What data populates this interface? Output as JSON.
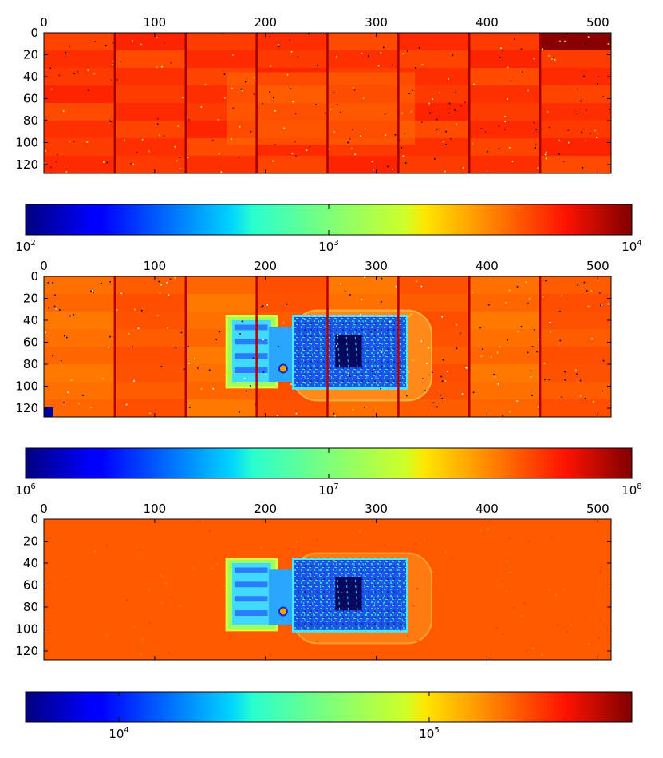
{
  "chart_data": [
    {
      "type": "heatmap",
      "colormap": "jet",
      "colorscale": "log",
      "x_ticks": [
        0,
        100,
        200,
        300,
        400,
        500
      ],
      "y_ticks": [
        0,
        20,
        40,
        60,
        80,
        100,
        120
      ],
      "xlim": [
        0,
        512
      ],
      "ylim": [
        128,
        0
      ],
      "x_axis_position": "top",
      "colorbar": {
        "orientation": "horizontal",
        "range": [
          100,
          10000
        ],
        "tick_labels": [
          {
            "base": "10",
            "exp": "2"
          },
          {
            "base": "10",
            "exp": "3"
          },
          {
            "base": "10",
            "exp": "4"
          }
        ]
      },
      "image": "flat-field: uniform high background (red/orange) with tile seams; top-right tile dark red"
    },
    {
      "type": "heatmap",
      "colormap": "jet",
      "colorscale": "log",
      "x_ticks": [
        0,
        100,
        200,
        300,
        400,
        500
      ],
      "y_ticks": [
        0,
        20,
        40,
        60,
        80,
        100,
        120
      ],
      "xlim": [
        0,
        512
      ],
      "ylim": [
        128,
        0
      ],
      "x_axis_position": "top",
      "colorbar": {
        "orientation": "horizontal",
        "range": [
          1000000,
          100000000
        ],
        "tick_labels": [
          {
            "base": "10",
            "exp": "6"
          },
          {
            "base": "10",
            "exp": "7"
          },
          {
            "base": "10",
            "exp": "8"
          }
        ]
      },
      "image": "raw X-ray of USB stick over tiled orange background; stick shown in blue/cyan"
    },
    {
      "type": "heatmap",
      "colormap": "jet",
      "colorscale": "log",
      "x_ticks": [
        0,
        100,
        200,
        300,
        400,
        500
      ],
      "y_ticks": [
        0,
        20,
        40,
        60,
        80,
        100,
        120
      ],
      "xlim": [
        0,
        512
      ],
      "ylim": [
        128,
        0
      ],
      "x_axis_position": "top",
      "colorbar": {
        "orientation": "horizontal",
        "range": [
          5000,
          450000
        ],
        "tick_labels": [
          {
            "base": "10",
            "exp": "4",
            "value": 10000
          },
          {
            "base": "10",
            "exp": "5",
            "value": 100000
          }
        ]
      },
      "image": "flat-field corrected X-ray of USB stick; uniform orange background, stick in blue/cyan"
    }
  ]
}
